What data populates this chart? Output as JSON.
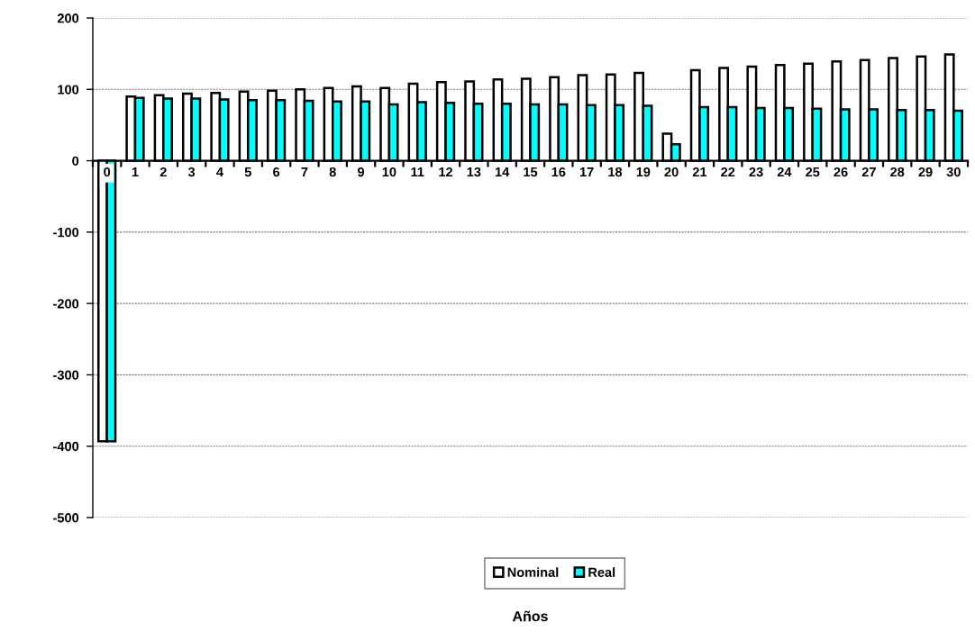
{
  "chart_data": {
    "type": "bar",
    "annotations": [
      "Años"
    ],
    "categories": [
      "0",
      "1",
      "2",
      "3",
      "4",
      "5",
      "6",
      "7",
      "8",
      "9",
      "10",
      "11",
      "12",
      "13",
      "14",
      "15",
      "16",
      "17",
      "18",
      "19",
      "20",
      "21",
      "22",
      "23",
      "24",
      "25",
      "26",
      "27",
      "28",
      "29",
      "30"
    ],
    "series": [
      {
        "name": "Nominal",
        "color": "#ffffff",
        "values": [
          -393,
          90,
          92,
          94,
          95,
          97,
          98,
          100,
          102,
          104,
          102,
          108,
          110,
          111,
          114,
          115,
          117,
          120,
          121,
          123,
          38,
          127,
          130,
          132,
          134,
          136,
          139,
          141,
          144,
          146,
          149
        ]
      },
      {
        "name": "Real",
        "color": "#00ffff",
        "values": [
          -393,
          88,
          87,
          87,
          86,
          85,
          85,
          84,
          83,
          83,
          79,
          82,
          81,
          80,
          80,
          79,
          79,
          78,
          78,
          77,
          23,
          75,
          75,
          74,
          74,
          73,
          72,
          72,
          71,
          71,
          70
        ]
      }
    ],
    "ylim": [
      -500,
      200
    ],
    "yticks": [
      -500,
      -400,
      -300,
      -200,
      -100,
      0,
      100,
      200
    ],
    "grid": "y",
    "legend": "bottom"
  }
}
